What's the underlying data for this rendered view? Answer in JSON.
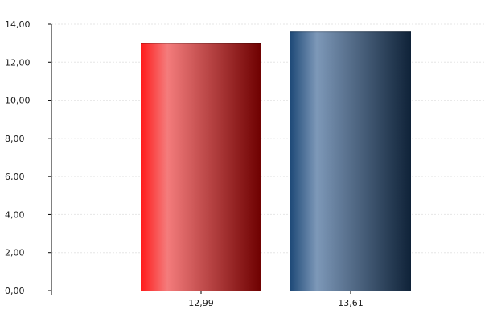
{
  "chart_data": {
    "type": "bar",
    "categories": [
      "12,99",
      "13,61"
    ],
    "values": [
      12.99,
      13.61
    ],
    "ylim": [
      0,
      14
    ],
    "yticks": [
      "0,00",
      "2,00",
      "4,00",
      "6,00",
      "8,00",
      "10,00",
      "12,00",
      "14,00"
    ],
    "grid": true,
    "legend": "none",
    "title": "",
    "xlabel": "",
    "ylabel": "",
    "bar_colors": [
      {
        "left": "#ff1a1a",
        "highlight": "#f47c7c",
        "right": "#6e0000"
      },
      {
        "left": "#1f4a78",
        "highlight": "#7d98b8",
        "right": "#0f2238"
      }
    ],
    "axis_color": "#000000",
    "grid_color": "#e6e6e6"
  }
}
